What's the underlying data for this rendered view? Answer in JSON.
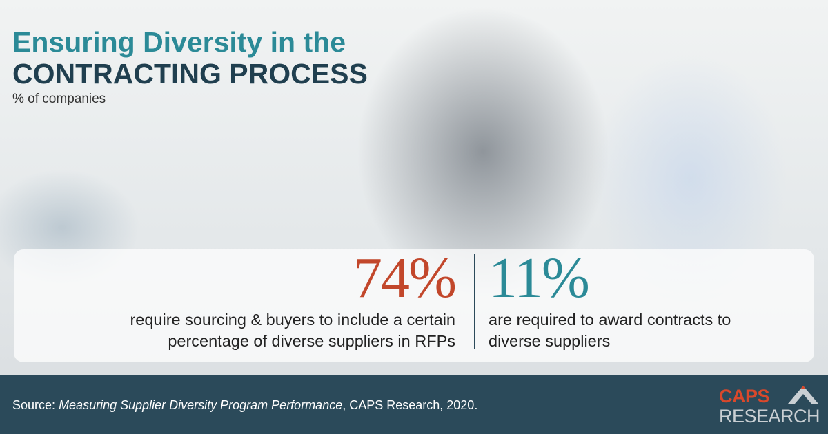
{
  "header": {
    "title_line1": "Ensuring Diversity in the",
    "title_line2": "CONTRACTING PROCESS",
    "subtitle": "% of companies"
  },
  "stats": [
    {
      "value": "74%",
      "description": "require sourcing & buyers to include a certain percentage of diverse suppliers in RFPs"
    },
    {
      "value": "11%",
      "description": "are required to award contracts to diverse suppliers"
    }
  ],
  "footer": {
    "source_label": "Source:",
    "source_title": "Measuring Supplier Diversity Program Performance",
    "source_rest": ", CAPS Research, 2020.",
    "logo_line1": "CAPS",
    "logo_line2": "RESEARCH"
  }
}
